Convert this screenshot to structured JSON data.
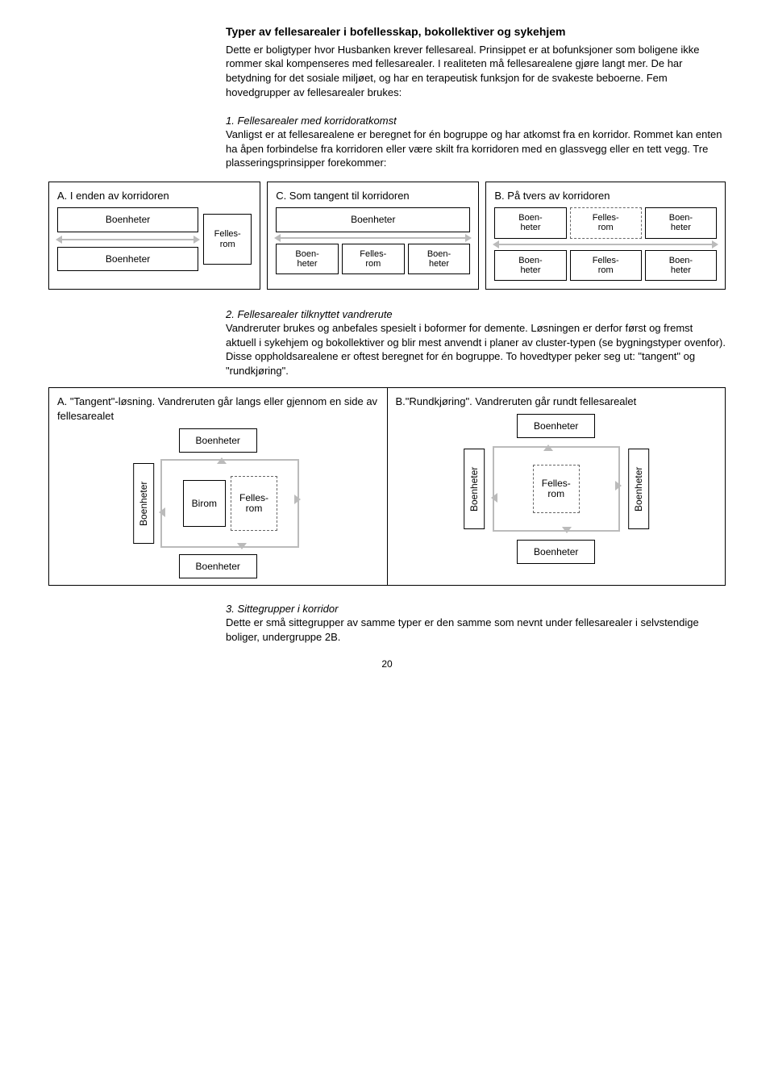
{
  "title": "Typer av fellesarealer i bofellesskap, bokollektiver og sykehjem",
  "intro": "Dette er boligtyper hvor Husbanken krever fellesareal. Prinsippet er at bofunksjoner som boligene ikke rommer skal kompenseres med fellesarealer. I realiteten må fellesarealene gjøre langt mer. De har betydning for det sosiale miljøet, og har en terapeutisk funksjon for de svakeste beboerne. Fem hovedgrupper av fellesarealer brukes:",
  "item1_head": "1. Fellesarealer med korridoratkomst",
  "item1_body": "Vanligst er at fellesarealene er beregnet for én bogruppe og har atkomst fra en korridor. Rommet kan enten ha åpen forbindelse fra korridoren eller være skilt fra korridoren med en glassvegg eller en tett vegg. Tre plasseringsprinsipper forekommer:",
  "panelA_title": "A. I enden av korridoren",
  "panelC_title": "C. Som tangent til korridoren",
  "panelB_title": "B. På tvers av korridoren",
  "boenheter": "Boenheter",
  "boenheter_short": "Boen-\nheter",
  "fellesrom": "Felles-\nrom",
  "birom": "Birom",
  "item2_head": "2. Fellesarealer tilknyttet vandrerute",
  "item2_body": "Vandreruter brukes og anbefales spesielt i boformer for demente. Løsningen er derfor først og fremst aktuell i sykehjem og bokollektiver og blir mest anvendt i planer av cluster-typen (se bygningstyper ovenfor). Disse oppholdsarealene er oftest beregnet for én bogruppe. To hovedtyper peker seg ut: \"tangent\" og \"rundkjøring\".",
  "panel2A_title": "A. \"Tangent\"-løsning. Vandreruten går langs eller gjennom en side av fellesarealet",
  "panel2B_title": "B.\"Rundkjøring\". Vandreruten går rundt fellesarealet",
  "item3_head": "3. Sittegrupper i korridor",
  "item3_body": "Dette er små sittegrupper av samme typer er den samme som nevnt under fellesarealer i selvstendige boliger, undergruppe 2B.",
  "pagenum": "20"
}
